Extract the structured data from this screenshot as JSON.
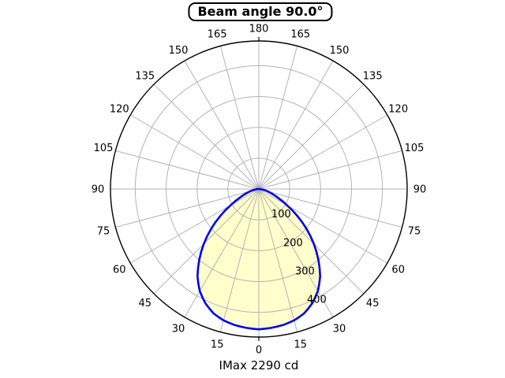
{
  "window": {
    "title_badge": "Beam angle 90.0°",
    "footer": "IMax 2290 cd"
  },
  "chart_data": {
    "type": "polar-line",
    "title": "Beam angle 90.0°",
    "annotation": "IMax 2290 cd",
    "imax_cd": 2290,
    "beam_angle_deg": 90.0,
    "angle_tick_step_deg": 15,
    "angle_tick_labels": [
      "0",
      "15",
      "30",
      "45",
      "60",
      "75",
      "90",
      "105",
      "120",
      "135",
      "150",
      "165",
      "180"
    ],
    "angle_labels_mirrored": true,
    "radial_tick_values": [
      100,
      200,
      300,
      400
    ],
    "radial_tick_labels": [
      "100",
      "200",
      "300",
      "400"
    ],
    "radial_axis_max": 480,
    "radial_label_angle_deg": 22.5,
    "cardinal_ticks_deg": [
      0,
      180
    ],
    "grid": true,
    "legend": false,
    "series": [
      {
        "name": "luminous-intensity-distribution",
        "mirrored": true,
        "angles_deg": [
          0,
          5,
          10,
          15,
          20,
          25,
          30,
          35,
          40,
          45,
          50,
          55,
          60,
          65,
          70,
          75,
          80,
          85,
          90
        ],
        "values": [
          455,
          452,
          448,
          441,
          429,
          409,
          382,
          346,
          300,
          252,
          202,
          152,
          105,
          70,
          46,
          30,
          16,
          7,
          2
        ]
      }
    ],
    "colors": {
      "curve": "#0000ee",
      "fill": "#ffffcc",
      "grid": "#b3b3b3",
      "axis": "#000000",
      "text": "#000000",
      "background": "#ffffff"
    }
  }
}
